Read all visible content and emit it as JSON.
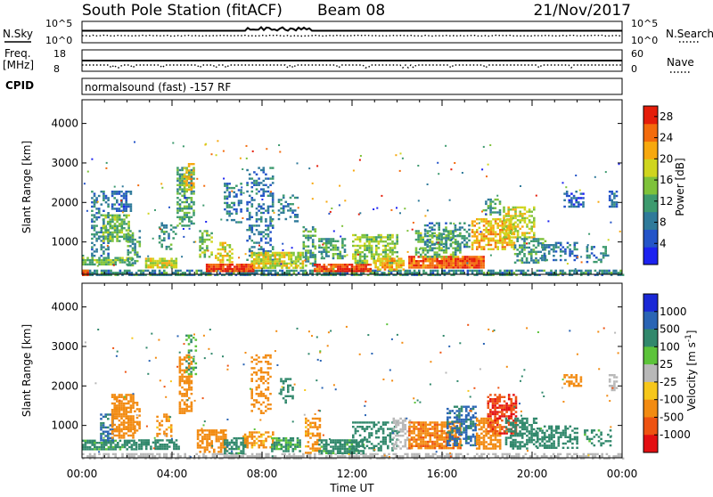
{
  "header": {
    "station": "South Pole Station (fitACF)",
    "beam": "Beam 08",
    "date": "21/Nov/2017"
  },
  "status_panels": {
    "nsky_label": "N.Sky",
    "nsky_ticks": [
      "10^5",
      "10^0"
    ],
    "nsearch_label": "N.Search",
    "nsearch_ticks": [
      "10^5",
      "10^0"
    ],
    "freq_label": "Freq.",
    "freq_unit": "[MHz]",
    "freq_ticks": [
      "18",
      "8"
    ],
    "nave_label": "Nave",
    "nave_ticks": [
      "60",
      "0"
    ],
    "cpid_label": "CPID",
    "cpid_value": "normalsound (fast) -157 RF"
  },
  "chart_data": [
    {
      "type": "heatmap",
      "title": "",
      "parameter": "Power",
      "xlabel": "Time UT",
      "ylabel": "Slant Range [km]",
      "x_ticks": [
        "00:00",
        "04:00",
        "08:00",
        "12:00",
        "16:00",
        "20:00",
        "00:00"
      ],
      "xlim_hours": [
        0,
        24
      ],
      "y_ticks": [
        1000,
        2000,
        3000,
        4000
      ],
      "ylim": [
        180,
        4600
      ],
      "colorbar": {
        "label": "Power [dB]",
        "ticks": [
          4,
          8,
          12,
          16,
          20,
          24,
          28
        ],
        "range": [
          0,
          30
        ],
        "colors": [
          "#1c22f0",
          "#2454c8",
          "#2f7a9a",
          "#3d9a6e",
          "#7ec23a",
          "#cfd51e",
          "#f7a80e",
          "#f36b0c",
          "#e51d0a"
        ]
      },
      "regions": [
        {
          "t0": 0.0,
          "t1": 24.0,
          "r0": 180,
          "r1": 300,
          "v": 10,
          "d": 0.7
        },
        {
          "t0": 0.0,
          "t1": 0.3,
          "r0": 180,
          "r1": 300,
          "v": 28,
          "d": 0.8
        },
        {
          "t0": 0.0,
          "t1": 2.2,
          "r0": 420,
          "r1": 620,
          "v": 14,
          "d": 0.75
        },
        {
          "t0": 0.4,
          "t1": 1.2,
          "r0": 650,
          "r1": 2300,
          "v": 9,
          "d": 0.45
        },
        {
          "t0": 0.9,
          "t1": 2.1,
          "r0": 1000,
          "r1": 1700,
          "v": 14,
          "d": 0.7
        },
        {
          "t0": 1.3,
          "t1": 2.2,
          "r0": 1800,
          "r1": 2300,
          "v": 7,
          "d": 0.55
        },
        {
          "t0": 2.0,
          "t1": 2.6,
          "r0": 400,
          "r1": 1300,
          "v": 12,
          "d": 0.45
        },
        {
          "t0": 2.8,
          "t1": 4.2,
          "r0": 350,
          "r1": 600,
          "v": 18,
          "d": 0.85
        },
        {
          "t0": 3.4,
          "t1": 4.2,
          "r0": 800,
          "r1": 1500,
          "v": 10,
          "d": 0.35
        },
        {
          "t0": 4.2,
          "t1": 5.0,
          "r0": 1400,
          "r1": 2900,
          "v": 12,
          "d": 0.6
        },
        {
          "t0": 4.5,
          "t1": 5.0,
          "r0": 2300,
          "r1": 3000,
          "v": 20,
          "d": 0.55
        },
        {
          "t0": 5.2,
          "t1": 5.8,
          "r0": 650,
          "r1": 1300,
          "v": 14,
          "d": 0.55
        },
        {
          "t0": 5.5,
          "t1": 7.6,
          "r0": 250,
          "r1": 450,
          "v": 27,
          "d": 0.95
        },
        {
          "t0": 5.9,
          "t1": 6.7,
          "r0": 480,
          "r1": 1000,
          "v": 19,
          "d": 0.6
        },
        {
          "t0": 6.3,
          "t1": 7.1,
          "r0": 1500,
          "r1": 2500,
          "v": 9,
          "d": 0.4
        },
        {
          "t0": 7.3,
          "t1": 8.5,
          "r0": 500,
          "r1": 2900,
          "v": 8,
          "d": 0.35
        },
        {
          "t0": 7.5,
          "t1": 9.8,
          "r0": 350,
          "r1": 750,
          "v": 18,
          "d": 0.75
        },
        {
          "t0": 8.7,
          "t1": 9.6,
          "r0": 1500,
          "r1": 2200,
          "v": 9,
          "d": 0.4
        },
        {
          "t0": 9.8,
          "t1": 10.4,
          "r0": 400,
          "r1": 1400,
          "v": 12,
          "d": 0.5
        },
        {
          "t0": 10.3,
          "t1": 12.8,
          "r0": 250,
          "r1": 450,
          "v": 27,
          "d": 0.9
        },
        {
          "t0": 10.5,
          "t1": 11.7,
          "r0": 600,
          "r1": 1100,
          "v": 12,
          "d": 0.6
        },
        {
          "t0": 12.0,
          "t1": 14.0,
          "r0": 450,
          "r1": 1200,
          "v": 16,
          "d": 0.6
        },
        {
          "t0": 13.0,
          "t1": 14.3,
          "r0": 300,
          "r1": 600,
          "v": 21,
          "d": 0.75
        },
        {
          "t0": 14.5,
          "t1": 17.8,
          "r0": 350,
          "r1": 650,
          "v": 26,
          "d": 0.95
        },
        {
          "t0": 14.8,
          "t1": 16.8,
          "r0": 650,
          "r1": 1300,
          "v": 13,
          "d": 0.6
        },
        {
          "t0": 15.2,
          "t1": 17.2,
          "r0": 900,
          "r1": 1500,
          "v": 10,
          "d": 0.4
        },
        {
          "t0": 17.3,
          "t1": 19.2,
          "r0": 800,
          "r1": 1600,
          "v": 21,
          "d": 0.65
        },
        {
          "t0": 17.8,
          "t1": 18.6,
          "r0": 1700,
          "r1": 2100,
          "v": 12,
          "d": 0.45
        },
        {
          "t0": 18.7,
          "t1": 20.1,
          "r0": 1100,
          "r1": 1900,
          "v": 18,
          "d": 0.6
        },
        {
          "t0": 19.2,
          "t1": 20.6,
          "r0": 500,
          "r1": 1100,
          "v": 11,
          "d": 0.55
        },
        {
          "t0": 20.4,
          "t1": 22.0,
          "r0": 550,
          "r1": 1000,
          "v": 8,
          "d": 0.45
        },
        {
          "t0": 21.4,
          "t1": 22.3,
          "r0": 1900,
          "r1": 2300,
          "v": 6,
          "d": 0.5
        },
        {
          "t0": 22.4,
          "t1": 23.5,
          "r0": 500,
          "r1": 900,
          "v": 9,
          "d": 0.35
        },
        {
          "t0": 23.4,
          "t1": 23.8,
          "r0": 1900,
          "r1": 2300,
          "v": 7,
          "d": 0.7
        }
      ]
    },
    {
      "type": "heatmap",
      "title": "",
      "parameter": "Velocity",
      "xlabel": "Time UT",
      "ylabel": "Slant Range [km]",
      "x_ticks": [
        "00:00",
        "04:00",
        "08:00",
        "12:00",
        "16:00",
        "20:00",
        "00:00"
      ],
      "xlim_hours": [
        0,
        24
      ],
      "y_ticks": [
        1000,
        2000,
        3000,
        4000
      ],
      "ylim": [
        180,
        4600
      ],
      "colorbar": {
        "label": "Velocity",
        "unit_base": "[m s",
        "unit_exp": "-1",
        "unit_close": "]",
        "ticks": [
          "1000",
          "500",
          "100",
          "25",
          "-25",
          "-100",
          "-500",
          "-1000"
        ],
        "bins": [
          1000,
          500,
          100,
          25,
          -25,
          -100,
          -500,
          -1000
        ],
        "colors": [
          "#1a28d6",
          "#2a64b4",
          "#31886c",
          "#5cc33a",
          "#b8b8b8",
          "#f6c71b",
          "#f28b12",
          "#ee5312",
          "#e30f12"
        ]
      },
      "regions": [
        {
          "t0": 0.0,
          "t1": 24.0,
          "r0": 180,
          "r1": 300,
          "v": 10,
          "d": 0.55
        },
        {
          "t0": 0.0,
          "t1": 2.4,
          "r0": 420,
          "r1": 640,
          "v": 150,
          "d": 0.8
        },
        {
          "t0": 0.8,
          "t1": 1.4,
          "r0": 650,
          "r1": 1300,
          "v": 600,
          "d": 0.6
        },
        {
          "t0": 1.3,
          "t1": 2.3,
          "r0": 700,
          "r1": 1800,
          "v": -300,
          "d": 0.75
        },
        {
          "t0": 2.3,
          "t1": 2.6,
          "r0": 800,
          "r1": 1600,
          "v": -200,
          "d": 0.5
        },
        {
          "t0": 2.5,
          "t1": 4.3,
          "r0": 430,
          "r1": 650,
          "v": 200,
          "d": 0.7
        },
        {
          "t0": 3.3,
          "t1": 4.0,
          "r0": 750,
          "r1": 1300,
          "v": -150,
          "d": 0.4
        },
        {
          "t0": 4.3,
          "t1": 4.9,
          "r0": 1300,
          "r1": 2800,
          "v": -300,
          "d": 0.6
        },
        {
          "t0": 4.6,
          "t1": 5.1,
          "r0": 2300,
          "r1": 3300,
          "v": 100,
          "d": 0.45
        },
        {
          "t0": 5.1,
          "t1": 6.4,
          "r0": 350,
          "r1": 900,
          "v": -250,
          "d": 0.65
        },
        {
          "t0": 6.3,
          "t1": 7.3,
          "r0": 300,
          "r1": 700,
          "v": 150,
          "d": 0.7
        },
        {
          "t0": 7.2,
          "t1": 8.5,
          "r0": 450,
          "r1": 850,
          "v": -120,
          "d": 0.55
        },
        {
          "t0": 7.5,
          "t1": 8.4,
          "r0": 1300,
          "r1": 2800,
          "v": -200,
          "d": 0.35
        },
        {
          "t0": 8.4,
          "t1": 9.7,
          "r0": 350,
          "r1": 700,
          "v": 120,
          "d": 0.7
        },
        {
          "t0": 8.8,
          "t1": 9.4,
          "r0": 1600,
          "r1": 2200,
          "v": 200,
          "d": 0.35
        },
        {
          "t0": 9.9,
          "t1": 10.6,
          "r0": 300,
          "r1": 1200,
          "v": -150,
          "d": 0.5
        },
        {
          "t0": 10.5,
          "t1": 12.5,
          "r0": 300,
          "r1": 650,
          "v": 150,
          "d": 0.75
        },
        {
          "t0": 12.0,
          "t1": 14.0,
          "r0": 350,
          "r1": 1100,
          "v": 300,
          "d": 0.45
        },
        {
          "t0": 13.8,
          "t1": 14.6,
          "r0": 400,
          "r1": 1200,
          "v": 0,
          "d": 0.5
        },
        {
          "t0": 14.5,
          "t1": 16.8,
          "r0": 400,
          "r1": 1100,
          "v": -400,
          "d": 0.8
        },
        {
          "t0": 16.2,
          "t1": 17.5,
          "r0": 500,
          "r1": 1500,
          "v": 600,
          "d": 0.55
        },
        {
          "t0": 17.5,
          "t1": 18.6,
          "r0": 400,
          "r1": 1200,
          "v": -200,
          "d": 0.7
        },
        {
          "t0": 18.0,
          "t1": 19.3,
          "r0": 800,
          "r1": 1800,
          "v": -900,
          "d": 0.6
        },
        {
          "t0": 18.8,
          "t1": 20.2,
          "r0": 400,
          "r1": 1200,
          "v": 200,
          "d": 0.6
        },
        {
          "t0": 20.2,
          "t1": 22.0,
          "r0": 450,
          "r1": 1000,
          "v": 300,
          "d": 0.5
        },
        {
          "t0": 21.4,
          "t1": 22.2,
          "r0": 2000,
          "r1": 2300,
          "v": -300,
          "d": 0.45
        },
        {
          "t0": 22.3,
          "t1": 23.5,
          "r0": 500,
          "r1": 900,
          "v": 150,
          "d": 0.35
        },
        {
          "t0": 23.4,
          "t1": 23.8,
          "r0": 1900,
          "r1": 2300,
          "v": 0,
          "d": 0.6
        }
      ]
    }
  ]
}
